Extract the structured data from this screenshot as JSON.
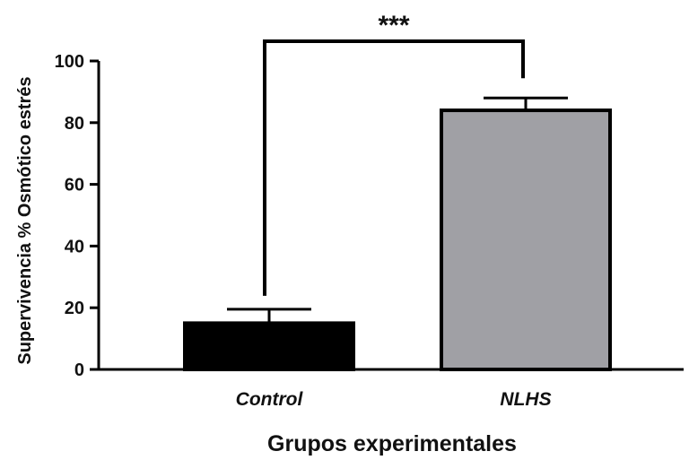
{
  "chart_data": {
    "type": "bar",
    "categories": [
      "Control",
      "NLHS"
    ],
    "values": [
      15,
      84
    ],
    "errors": [
      4.5,
      4
    ],
    "bar_colors": [
      "#000000",
      "#a0a0a5"
    ],
    "ylabel": "Supervivencia % Osmótico estrés",
    "xlabel": "Grupos experimentales",
    "ylim": [
      0,
      100
    ],
    "yticks": [
      0,
      20,
      40,
      60,
      80,
      100
    ],
    "significance": {
      "label": "***",
      "between": [
        "Control",
        "NLHS"
      ]
    },
    "grid": false
  }
}
